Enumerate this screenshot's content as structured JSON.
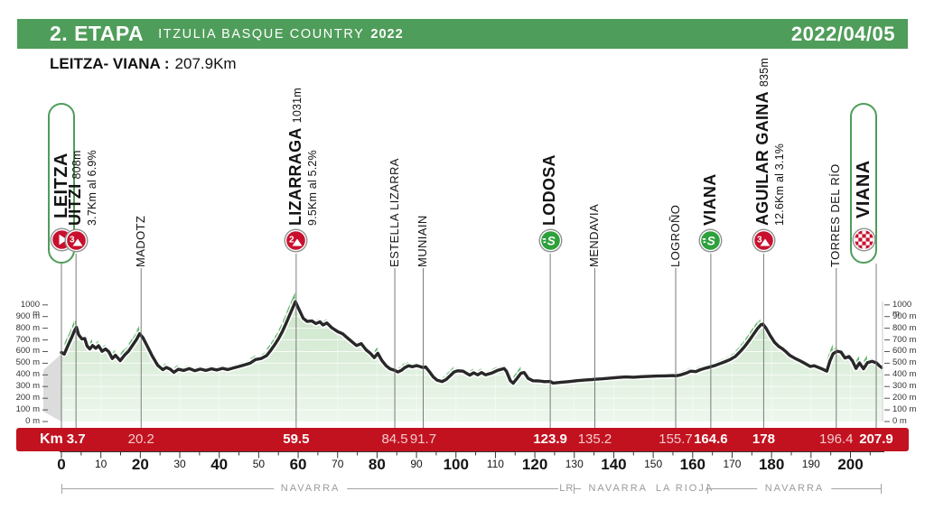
{
  "header": {
    "stage": "2. ETAPA",
    "race": "ITZULIA BASQUE COUNTRY",
    "year": "2022",
    "date": "2022/04/05"
  },
  "subtitle": {
    "route": "LEITZA- VIANA :",
    "distance": "207.9Km"
  },
  "colors": {
    "green": "#4f9d5a",
    "red_bar": "#c2121f",
    "icon_red": "#c8102e",
    "sprint_green": "#2da13b",
    "profile_line": "#282828"
  },
  "chart_data": {
    "type": "area",
    "xlabel": "Km",
    "ylabel": "m",
    "x_range": [
      0,
      207.9
    ],
    "y_range": [
      0,
      1000
    ],
    "y_step": 100,
    "x_major_step": 20,
    "x_minor_step": 10,
    "grid": true,
    "km_axis_label": "Km",
    "y_unit": "m",
    "profile": [
      [
        0,
        592
      ],
      [
        0.7,
        578
      ],
      [
        1.6,
        648
      ],
      [
        2.6,
        722
      ],
      [
        3.3,
        778
      ],
      [
        3.8,
        808
      ],
      [
        4.4,
        742
      ],
      [
        5.2,
        708
      ],
      [
        5.9,
        712
      ],
      [
        6.5,
        648
      ],
      [
        7.2,
        622
      ],
      [
        7.9,
        652
      ],
      [
        8.7,
        628
      ],
      [
        9.4,
        650
      ],
      [
        10.3,
        602
      ],
      [
        11.2,
        622
      ],
      [
        12,
        598
      ],
      [
        12.9,
        540
      ],
      [
        13.7,
        568
      ],
      [
        14.9,
        522
      ],
      [
        16,
        570
      ],
      [
        17,
        602
      ],
      [
        18.1,
        658
      ],
      [
        19,
        702
      ],
      [
        19.8,
        752
      ],
      [
        20.6,
        722
      ],
      [
        21.6,
        658
      ],
      [
        23,
        562
      ],
      [
        24.4,
        482
      ],
      [
        25.7,
        445
      ],
      [
        26.6,
        464
      ],
      [
        27.6,
        448
      ],
      [
        28.5,
        422
      ],
      [
        29.6,
        448
      ],
      [
        31,
        438
      ],
      [
        32.4,
        454
      ],
      [
        33.8,
        436
      ],
      [
        35.2,
        450
      ],
      [
        36.6,
        438
      ],
      [
        38,
        452
      ],
      [
        39.4,
        442
      ],
      [
        40.8,
        456
      ],
      [
        42.2,
        446
      ],
      [
        43.6,
        460
      ],
      [
        45,
        472
      ],
      [
        46.4,
        486
      ],
      [
        47.8,
        500
      ],
      [
        49.2,
        532
      ],
      [
        50.6,
        540
      ],
      [
        52,
        565
      ],
      [
        53,
        608
      ],
      [
        54,
        655
      ],
      [
        55,
        708
      ],
      [
        56,
        772
      ],
      [
        57,
        845
      ],
      [
        58,
        925
      ],
      [
        59.3,
        1028
      ],
      [
        60.3,
        955
      ],
      [
        61.3,
        885
      ],
      [
        62.3,
        858
      ],
      [
        63.5,
        862
      ],
      [
        64.5,
        840
      ],
      [
        65.5,
        855
      ],
      [
        66.3,
        828
      ],
      [
        67.3,
        845
      ],
      [
        68.5,
        805
      ],
      [
        70,
        772
      ],
      [
        71.3,
        752
      ],
      [
        72.3,
        722
      ],
      [
        73.5,
        688
      ],
      [
        74.8,
        652
      ],
      [
        76,
        668
      ],
      [
        77.2,
        615
      ],
      [
        78.3,
        585
      ],
      [
        79.3,
        548
      ],
      [
        80.2,
        585
      ],
      [
        81.2,
        525
      ],
      [
        82.3,
        478
      ],
      [
        83.3,
        452
      ],
      [
        84.5,
        438
      ],
      [
        85.3,
        425
      ],
      [
        86.2,
        440
      ],
      [
        87,
        462
      ],
      [
        88,
        478
      ],
      [
        89,
        470
      ],
      [
        90,
        480
      ],
      [
        90.8,
        472
      ],
      [
        91.7,
        462
      ],
      [
        92.3,
        468
      ],
      [
        93.2,
        430
      ],
      [
        94.2,
        385
      ],
      [
        95.2,
        355
      ],
      [
        96.5,
        343
      ],
      [
        97.5,
        360
      ],
      [
        98.5,
        392
      ],
      [
        99.5,
        425
      ],
      [
        100.5,
        435
      ],
      [
        101.8,
        432
      ],
      [
        102.8,
        412
      ],
      [
        103.5,
        398
      ],
      [
        104.5,
        418
      ],
      [
        105.5,
        400
      ],
      [
        106.5,
        420
      ],
      [
        107.5,
        400
      ],
      [
        109,
        415
      ],
      [
        110.5,
        438
      ],
      [
        112.2,
        455
      ],
      [
        112.8,
        430
      ],
      [
        113.8,
        350
      ],
      [
        114.5,
        328
      ],
      [
        115.5,
        370
      ],
      [
        116.5,
        415
      ],
      [
        117.3,
        420
      ],
      [
        118.3,
        370
      ],
      [
        119.5,
        350
      ],
      [
        121,
        348
      ],
      [
        122.5,
        342
      ],
      [
        123.9,
        344
      ],
      [
        124.6,
        330
      ],
      [
        126.5,
        336
      ],
      [
        128.5,
        342
      ],
      [
        130.5,
        350
      ],
      [
        132.5,
        355
      ],
      [
        134.5,
        360
      ],
      [
        135.2,
        362
      ],
      [
        137,
        366
      ],
      [
        139,
        372
      ],
      [
        141,
        378
      ],
      [
        143,
        382
      ],
      [
        145,
        380
      ],
      [
        147,
        385
      ],
      [
        149,
        388
      ],
      [
        151,
        390
      ],
      [
        153,
        392
      ],
      [
        155,
        394
      ],
      [
        155.7,
        392
      ],
      [
        157,
        400
      ],
      [
        158.3,
        415
      ],
      [
        159.5,
        432
      ],
      [
        160.8,
        428
      ],
      [
        162,
        445
      ],
      [
        163.3,
        458
      ],
      [
        164.6,
        470
      ],
      [
        165.8,
        482
      ],
      [
        167,
        498
      ],
      [
        168.3,
        515
      ],
      [
        169.5,
        532
      ],
      [
        170.8,
        558
      ],
      [
        172,
        598
      ],
      [
        173.2,
        645
      ],
      [
        174.4,
        698
      ],
      [
        175.5,
        752
      ],
      [
        176.5,
        800
      ],
      [
        177.3,
        830
      ],
      [
        177.8,
        835
      ],
      [
        178.6,
        800
      ],
      [
        179.6,
        740
      ],
      [
        180.8,
        678
      ],
      [
        181.8,
        645
      ],
      [
        182.8,
        622
      ],
      [
        183.6,
        600
      ],
      [
        184.6,
        568
      ],
      [
        186,
        540
      ],
      [
        187.4,
        518
      ],
      [
        188.6,
        495
      ],
      [
        189.8,
        472
      ],
      [
        190.8,
        478
      ],
      [
        191.8,
        465
      ],
      [
        193,
        448
      ],
      [
        194,
        432
      ],
      [
        194.8,
        520
      ],
      [
        195.6,
        582
      ],
      [
        196.6,
        602
      ],
      [
        197.6,
        596
      ],
      [
        198.6,
        545
      ],
      [
        199.6,
        557
      ],
      [
        200.5,
        520
      ],
      [
        201.4,
        455
      ],
      [
        202.3,
        502
      ],
      [
        203.3,
        452
      ],
      [
        204.3,
        505
      ],
      [
        205.5,
        516
      ],
      [
        206.6,
        502
      ],
      [
        207.3,
        478
      ],
      [
        207.9,
        463
      ]
    ],
    "waypoints": [
      {
        "name": "LEITZA",
        "km": 0,
        "icon": "start",
        "boxed": true,
        "show_km": false
      },
      {
        "name": "UITZI",
        "elevation": "808m",
        "detail": "3.7Km al 6.9%",
        "km": 3.7,
        "km_text": "3.7",
        "icon": "cat3",
        "km_bold": true,
        "show_km": true
      },
      {
        "name": "MADOTZ",
        "km": 20.2,
        "km_text": "20.2",
        "icon": "none",
        "km_bold": false,
        "show_km": true
      },
      {
        "name": "LIZARRAGA",
        "elevation": "1031m",
        "detail": "9.5Km al 5.2%",
        "km": 59.5,
        "km_text": "59.5",
        "icon": "cat2",
        "km_bold": true,
        "show_km": true
      },
      {
        "name": "ESTELLA LIZARRA",
        "km": 84.5,
        "km_text": "84.5",
        "icon": "none",
        "km_bold": false,
        "show_km": true
      },
      {
        "name": "MUNIAIN",
        "km": 91.7,
        "km_text": "91.7",
        "icon": "none",
        "km_bold": false,
        "show_km": true
      },
      {
        "name": "LODOSA",
        "km": 123.9,
        "km_text": "123.9",
        "icon": "sprint",
        "km_bold": true,
        "show_km": true
      },
      {
        "name": "MENDAVIA",
        "km": 135.2,
        "km_text": "135.2",
        "icon": "none",
        "km_bold": false,
        "show_km": true
      },
      {
        "name": "LOGROÑO",
        "km": 155.7,
        "km_text": "155.7",
        "icon": "none",
        "km_bold": false,
        "show_km": true
      },
      {
        "name": "VIANA",
        "km": 164.6,
        "km_text": "164.6",
        "icon": "sprint",
        "km_bold": true,
        "show_km": true
      },
      {
        "name": "AGUILAR GAINA",
        "elevation": "835m",
        "detail": "12.6Km al 3.1%",
        "km": 178,
        "km_text": "178",
        "icon": "cat3",
        "km_bold": true,
        "show_km": true
      },
      {
        "name": "TORRES DEL RÍO",
        "km": 196.4,
        "km_text": "196.4",
        "icon": "none",
        "km_bold": false,
        "show_km": true
      },
      {
        "name": "VIANA",
        "km": 207.9,
        "km_text": "207.9",
        "icon": "finish",
        "boxed": true,
        "km_bold": true,
        "show_km": true,
        "x_override": 970,
        "box_center": 956
      }
    ],
    "regions": [
      {
        "label": "NAVARRA",
        "from": 0,
        "to": 126.2
      },
      {
        "label": "LR",
        "from": 126.2,
        "to": 129.9
      },
      {
        "label": "NAVARRA",
        "from": 129.9,
        "to": 152.3
      },
      {
        "label": "LA RIOJA",
        "from": 152.3,
        "to": 163.7
      },
      {
        "label": "NAVARRA",
        "from": 163.7,
        "to": 207.9
      }
    ]
  }
}
